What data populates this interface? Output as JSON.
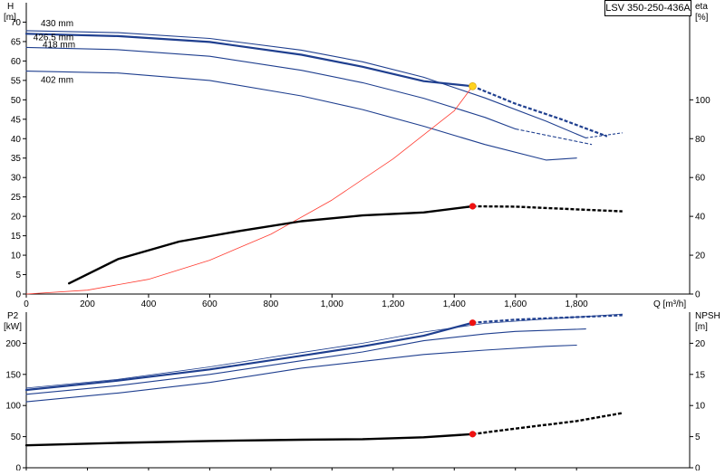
{
  "colors": {
    "curve": "#1f3f8f",
    "black": "#000000",
    "system": "#ff3b30",
    "duty_point_top": "#ffd21f",
    "duty_point_dot": "#ee1111"
  },
  "title_box": "LSV 350-250-436A",
  "chart_data": [
    {
      "type": "line",
      "xlabel": "Q [m³/h]",
      "ylabel_left": "H\n[m]",
      "ylabel_right": "eta\n[%]",
      "xlim": [
        0,
        2170
      ],
      "ylim_left": [
        0,
        75
      ],
      "ylim_right": [
        0,
        150
      ],
      "x_ticks": [
        0,
        200,
        400,
        600,
        800,
        1000,
        1200,
        1400,
        1600,
        1800
      ],
      "x_tick_labels": [
        "0",
        "200",
        "400",
        "600",
        "800",
        "1,000",
        "1,200",
        "1,400",
        "1,600",
        "1,800"
      ],
      "y_left_ticks": [
        0,
        5,
        10,
        15,
        20,
        25,
        30,
        35,
        40,
        45,
        50,
        55,
        60,
        65,
        70
      ],
      "y_right_ticks": [
        0,
        20,
        40,
        60,
        80,
        100
      ],
      "series": [
        {
          "name": "430 mm",
          "color": "#1f3f8f",
          "label_at": 0,
          "x": [
            0,
            300,
            600,
            900,
            1100,
            1300,
            1500,
            1700,
            1830
          ],
          "y": [
            67.8,
            67.3,
            65.8,
            62.8,
            59.8,
            55.8,
            50.5,
            44.5,
            40.2
          ],
          "dashed_x": [
            1830,
            1950
          ],
          "dashed_y": [
            40.2,
            41.5
          ]
        },
        {
          "name": "426.5 mm",
          "color": "#1f3f8f",
          "label_at": 0,
          "x": [
            0,
            300,
            600,
            900,
            1100,
            1300,
            1460,
            1600,
            1750,
            1900
          ],
          "y": [
            67.0,
            66.4,
            64.9,
            61.6,
            58.5,
            54.8,
            53.5,
            49.0,
            45.0,
            40.6
          ],
          "dashed_from": 1460,
          "bold": true
        },
        {
          "name": "418 mm",
          "color": "#1f3f8f",
          "label_at": 0,
          "x": [
            0,
            300,
            600,
            900,
            1100,
            1300,
            1500,
            1600,
            1850
          ],
          "y": [
            63.5,
            62.9,
            61.2,
            57.6,
            54.4,
            50.4,
            45.5,
            42.5,
            38.5
          ],
          "dashed_from": 1600
        },
        {
          "name": "402 mm",
          "color": "#1f3f8f",
          "label_at": 0,
          "x": [
            0,
            300,
            600,
            900,
            1100,
            1300,
            1500,
            1700,
            1800
          ],
          "y": [
            57.4,
            56.9,
            55.0,
            51.0,
            47.5,
            43.2,
            38.5,
            34.5,
            35.0
          ]
        },
        {
          "name": "system",
          "color": "#ff3b30",
          "system": true,
          "x": [
            0,
            200,
            400,
            600,
            800,
            1000,
            1200,
            1400,
            1460
          ],
          "y": [
            0,
            1.0,
            3.8,
            8.7,
            15.4,
            24.2,
            34.8,
            47.2,
            53.5
          ]
        },
        {
          "name": "eta",
          "color": "#000000",
          "axis": "right",
          "x": [
            140,
            300,
            500,
            700,
            900,
            1100,
            1300,
            1460,
            1600,
            1800,
            1950
          ],
          "y": [
            5.5,
            18.0,
            27.0,
            32.5,
            37.5,
            40.5,
            42.0,
            45.2,
            45.0,
            43.6,
            42.6
          ],
          "dashed_from": 1460
        }
      ],
      "duty_point": {
        "x": 1460,
        "y": 53.5
      }
    },
    {
      "type": "line",
      "xlabel": "",
      "ylabel_left": "P2\n[kW]",
      "ylabel_right": "NPSH\n[m]",
      "xlim": [
        0,
        2170
      ],
      "ylim_left": [
        0,
        250
      ],
      "ylim_right": [
        0,
        25
      ],
      "y_left_ticks": [
        0,
        50,
        100,
        150,
        200
      ],
      "y_right_ticks": [
        0,
        5,
        10,
        15,
        20
      ],
      "series": [
        {
          "name": "P2 430 mm",
          "color": "#1f3f8f",
          "thin": true,
          "x": [
            0,
            300,
            600,
            900,
            1100,
            1300,
            1500,
            1700,
            1830,
            1950
          ],
          "y": [
            128,
            142,
            162,
            185,
            200,
            218,
            232,
            239,
            243,
            247
          ]
        },
        {
          "name": "P2 426.5 mm",
          "color": "#1f3f8f",
          "bold": true,
          "x": [
            0,
            300,
            600,
            900,
            1100,
            1300,
            1460,
            1600,
            1750,
            1950
          ],
          "y": [
            125,
            140,
            158,
            180,
            195,
            212,
            233,
            238,
            241,
            245
          ],
          "dashed_from": 1460
        },
        {
          "name": "P2 418 mm",
          "color": "#1f3f8f",
          "x": [
            0,
            300,
            600,
            900,
            1100,
            1300,
            1500,
            1600,
            1830
          ],
          "y": [
            118,
            132,
            150,
            172,
            186,
            204,
            215,
            219,
            223
          ]
        },
        {
          "name": "P2 402 mm",
          "color": "#1f3f8f",
          "x": [
            0,
            300,
            600,
            900,
            1100,
            1300,
            1500,
            1700,
            1800
          ],
          "y": [
            106,
            120,
            137,
            160,
            171,
            182,
            189,
            195,
            197
          ]
        },
        {
          "name": "NPSH",
          "color": "#000000",
          "axis": "right",
          "x": [
            0,
            300,
            600,
            900,
            1100,
            1300,
            1460,
            1600,
            1800,
            1950
          ],
          "y": [
            3.6,
            4.0,
            4.3,
            4.5,
            4.6,
            4.9,
            5.4,
            6.3,
            7.5,
            8.8
          ],
          "dashed_from": 1460
        }
      ],
      "duty_point_p2": {
        "x": 1460,
        "y": 233
      },
      "duty_point_npsh": {
        "x": 1460,
        "y": 5.4
      }
    }
  ]
}
